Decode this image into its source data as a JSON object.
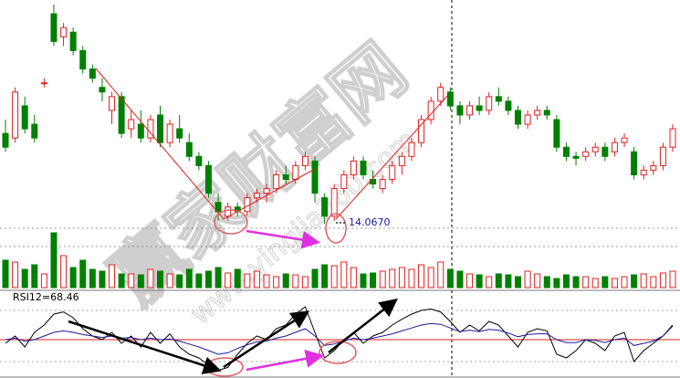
{
  "chart_data": [
    {
      "type": "candlestick",
      "ylim": [
        13.9,
        16.5
      ],
      "up_color": "#e02020",
      "down_color": "#008000",
      "annotation": "14.0670",
      "open": [
        15.05,
        15.0,
        15.35,
        15.15,
        15.6,
        16.35,
        16.1,
        16.15,
        15.95,
        15.75,
        15.55,
        15.3,
        15.45,
        15.1,
        15.15,
        15.0,
        15.25,
        14.95,
        15.1,
        14.95,
        14.8,
        14.7,
        14.3,
        14.15,
        14.25,
        14.2,
        14.35,
        14.4,
        14.45,
        14.6,
        14.55,
        14.7,
        14.75,
        14.35,
        14.15,
        14.45,
        14.6,
        14.75,
        14.55,
        14.45,
        14.55,
        14.7,
        14.8,
        14.95,
        15.2,
        15.4,
        15.5,
        15.35,
        15.25,
        15.35,
        15.3,
        15.45,
        15.4,
        15.3,
        15.15,
        15.25,
        15.3,
        15.2,
        14.9,
        14.8,
        14.8,
        14.85,
        14.9,
        14.85,
        14.95,
        14.85,
        14.6,
        14.65,
        14.7,
        14.9
      ],
      "high": [
        15.2,
        15.55,
        15.45,
        15.25,
        15.65,
        16.45,
        16.25,
        16.2,
        16.0,
        15.8,
        15.65,
        15.5,
        15.5,
        15.3,
        15.3,
        15.25,
        15.35,
        15.2,
        15.25,
        15.05,
        14.85,
        14.75,
        14.4,
        14.3,
        14.3,
        14.4,
        14.45,
        14.5,
        14.65,
        14.7,
        14.75,
        14.85,
        14.8,
        14.4,
        14.5,
        14.65,
        14.8,
        14.8,
        14.65,
        14.6,
        14.75,
        14.85,
        15.0,
        15.25,
        15.45,
        15.6,
        15.55,
        15.4,
        15.4,
        15.45,
        15.5,
        15.55,
        15.45,
        15.35,
        15.3,
        15.35,
        15.35,
        15.25,
        14.95,
        14.85,
        14.9,
        14.95,
        14.95,
        15.0,
        15.05,
        14.9,
        14.7,
        14.75,
        14.95,
        15.15
      ],
      "low": [
        14.85,
        14.95,
        15.05,
        14.95,
        15.55,
        16.0,
        16.0,
        15.9,
        15.7,
        15.6,
        15.4,
        15.15,
        15.0,
        15.0,
        14.95,
        14.95,
        14.9,
        14.9,
        14.95,
        14.75,
        14.65,
        14.35,
        14.1,
        14.1,
        14.15,
        14.15,
        14.3,
        14.3,
        14.4,
        14.5,
        14.5,
        14.65,
        14.3,
        14.067,
        14.1,
        14.4,
        14.55,
        14.55,
        14.45,
        14.4,
        14.5,
        14.6,
        14.75,
        14.9,
        15.15,
        15.35,
        15.3,
        15.15,
        15.2,
        15.25,
        15.25,
        15.35,
        15.25,
        15.1,
        15.1,
        15.2,
        15.2,
        14.85,
        14.75,
        14.7,
        14.75,
        14.8,
        14.75,
        14.8,
        14.9,
        14.55,
        14.55,
        14.6,
        14.65,
        14.85
      ],
      "close": [
        14.9,
        15.5,
        15.1,
        15.0,
        15.6,
        16.05,
        16.2,
        15.95,
        15.75,
        15.65,
        15.5,
        15.45,
        15.05,
        15.2,
        15.0,
        15.2,
        14.95,
        15.15,
        15.0,
        14.8,
        14.7,
        14.4,
        14.2,
        14.25,
        14.2,
        14.35,
        14.4,
        14.45,
        14.6,
        14.55,
        14.7,
        14.8,
        14.4,
        14.15,
        14.45,
        14.6,
        14.75,
        14.6,
        14.5,
        14.55,
        14.7,
        14.8,
        14.95,
        15.2,
        15.4,
        15.55,
        15.35,
        15.25,
        15.35,
        15.3,
        15.45,
        15.4,
        15.3,
        15.15,
        15.25,
        15.3,
        15.25,
        14.9,
        14.8,
        14.78,
        14.85,
        14.9,
        14.8,
        14.95,
        15.0,
        14.6,
        14.65,
        14.7,
        14.9,
        15.1
      ]
    },
    {
      "type": "bar",
      "ylim": [
        0,
        70
      ],
      "values": [
        30,
        28,
        20,
        25,
        15,
        60,
        35,
        22,
        30,
        20,
        18,
        25,
        15,
        15,
        14,
        20,
        18,
        15,
        14,
        20,
        15,
        18,
        22,
        16,
        20,
        15,
        18,
        14,
        12,
        15,
        14,
        12,
        20,
        25,
        24,
        28,
        22,
        15,
        16,
        18,
        20,
        22,
        20,
        25,
        22,
        28,
        20,
        18,
        15,
        14,
        12,
        15,
        14,
        12,
        18,
        15,
        12,
        10,
        14,
        12,
        12,
        10,
        12,
        10,
        12,
        14,
        15,
        12,
        16,
        18
      ]
    },
    {
      "type": "line",
      "title": "RSI12=68.46",
      "ylim": [
        0,
        100
      ],
      "hline": 50,
      "hline_color": "#e02020",
      "series": [
        {
          "color": "#000000",
          "values": [
            45,
            55,
            40,
            60,
            70,
            85,
            88,
            80,
            65,
            55,
            50,
            60,
            45,
            55,
            40,
            60,
            45,
            58,
            40,
            30,
            25,
            15,
            8,
            12,
            30,
            45,
            55,
            50,
            65,
            70,
            85,
            95,
            60,
            25,
            35,
            50,
            60,
            45,
            55,
            60,
            70,
            78,
            85,
            90,
            92,
            88,
            75,
            60,
            70,
            62,
            75,
            70,
            55,
            40,
            60,
            65,
            62,
            30,
            25,
            35,
            50,
            45,
            35,
            55,
            60,
            20,
            35,
            45,
            55,
            70
          ]
        },
        {
          "color": "#1a1aa0",
          "values": [
            50,
            52,
            48,
            50,
            55,
            60,
            62,
            60,
            57,
            55,
            53,
            55,
            52,
            53,
            50,
            52,
            50,
            51,
            48,
            44,
            40,
            35,
            30,
            32,
            38,
            43,
            47,
            48,
            52,
            55,
            60,
            65,
            55,
            42,
            44,
            48,
            52,
            50,
            52,
            55,
            58,
            62,
            66,
            70,
            72,
            71,
            66,
            61,
            63,
            61,
            64,
            63,
            59,
            54,
            57,
            58,
            58,
            50,
            46,
            46,
            50,
            49,
            46,
            50,
            52,
            42,
            45,
            48,
            55,
            68.46
          ]
        }
      ]
    }
  ],
  "watermark": {
    "text": "赢家财富网",
    "url": "www.yingjia360.com"
  }
}
